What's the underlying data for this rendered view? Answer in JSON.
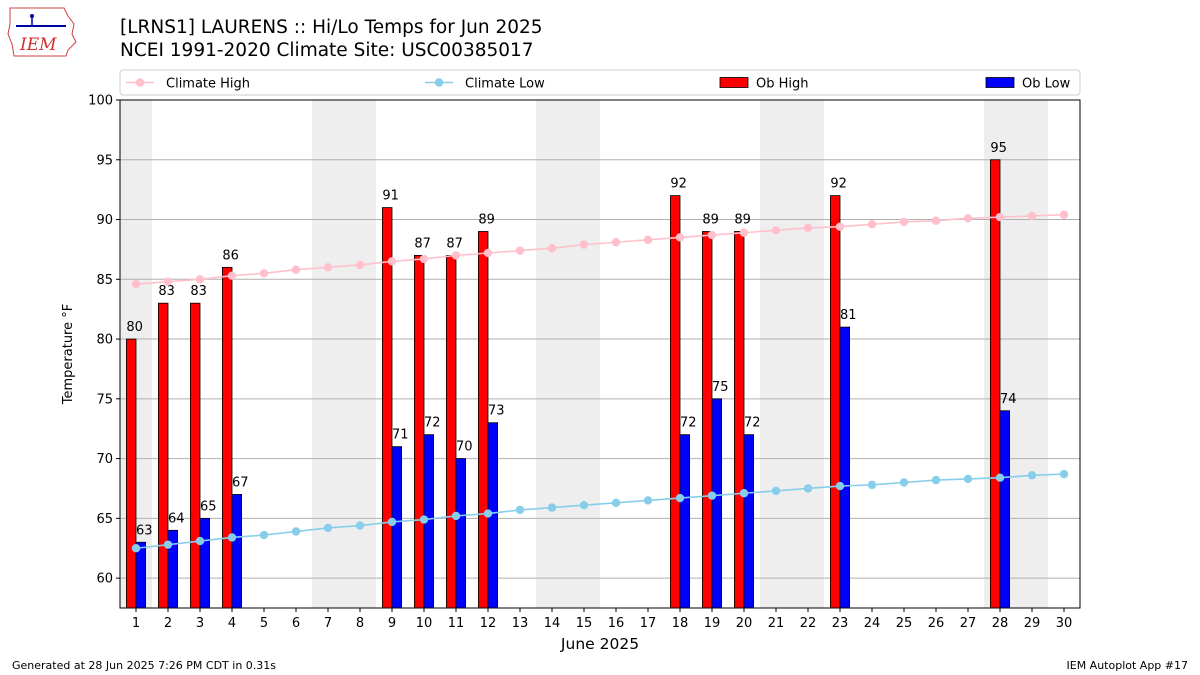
{
  "logo_text": "IEM",
  "title_line1": "[LRNS1] LAURENS :: Hi/Lo Temps for Jun 2025",
  "title_line2": "NCEI 1991-2020 Climate Site: USC00385017",
  "footer_left": "Generated at 28 Jun 2025 7:26 PM CDT in 0.31s",
  "footer_right": "IEM Autoplot App #17",
  "colors": {
    "ob_high": "#ff0000",
    "ob_low": "#0000ff",
    "climate_high": "#ffc0cb",
    "climate_low": "#87ceeb",
    "weekend_shade": "#eeeeee",
    "grid": "#b0b0b0"
  },
  "chart_data": {
    "type": "bar",
    "xlabel": "June 2025",
    "ylabel": "Temperature °F",
    "ylim": [
      57.5,
      100
    ],
    "yticks": [
      60,
      65,
      70,
      75,
      80,
      85,
      90,
      95,
      100
    ],
    "grid": "horizontal",
    "legend_position": "top",
    "shaded_days": [
      1,
      7,
      8,
      14,
      15,
      21,
      22,
      28,
      29
    ],
    "days": [
      1,
      2,
      3,
      4,
      5,
      6,
      7,
      8,
      9,
      10,
      11,
      12,
      13,
      14,
      15,
      16,
      17,
      18,
      19,
      20,
      21,
      22,
      23,
      24,
      25,
      26,
      27,
      28,
      29,
      30
    ],
    "ob_high": [
      80,
      83,
      83,
      86,
      null,
      null,
      null,
      null,
      91,
      87,
      87,
      89,
      null,
      null,
      null,
      null,
      null,
      92,
      89,
      89,
      null,
      null,
      92,
      null,
      null,
      null,
      null,
      95,
      null,
      null
    ],
    "ob_low": [
      63,
      64,
      65,
      67,
      null,
      null,
      null,
      null,
      71,
      72,
      70,
      73,
      null,
      null,
      null,
      null,
      null,
      72,
      75,
      72,
      null,
      null,
      81,
      null,
      null,
      null,
      null,
      74,
      null,
      null
    ],
    "climate_high": [
      84.6,
      84.8,
      85.0,
      85.3,
      85.5,
      85.8,
      86.0,
      86.2,
      86.5,
      86.7,
      87.0,
      87.2,
      87.4,
      87.6,
      87.9,
      88.1,
      88.3,
      88.5,
      88.7,
      88.9,
      89.1,
      89.3,
      89.4,
      89.6,
      89.8,
      89.9,
      90.1,
      90.2,
      90.3,
      90.4
    ],
    "climate_low": [
      62.5,
      62.8,
      63.1,
      63.4,
      63.6,
      63.9,
      64.2,
      64.4,
      64.7,
      64.9,
      65.2,
      65.4,
      65.7,
      65.9,
      66.1,
      66.3,
      66.5,
      66.7,
      66.9,
      67.1,
      67.3,
      67.5,
      67.7,
      67.8,
      68.0,
      68.2,
      68.3,
      68.4,
      68.6,
      68.7
    ],
    "series": [
      {
        "name": "Climate High",
        "kind": "line"
      },
      {
        "name": "Climate Low",
        "kind": "line"
      },
      {
        "name": "Ob High",
        "kind": "bar"
      },
      {
        "name": "Ob Low",
        "kind": "bar"
      }
    ]
  }
}
